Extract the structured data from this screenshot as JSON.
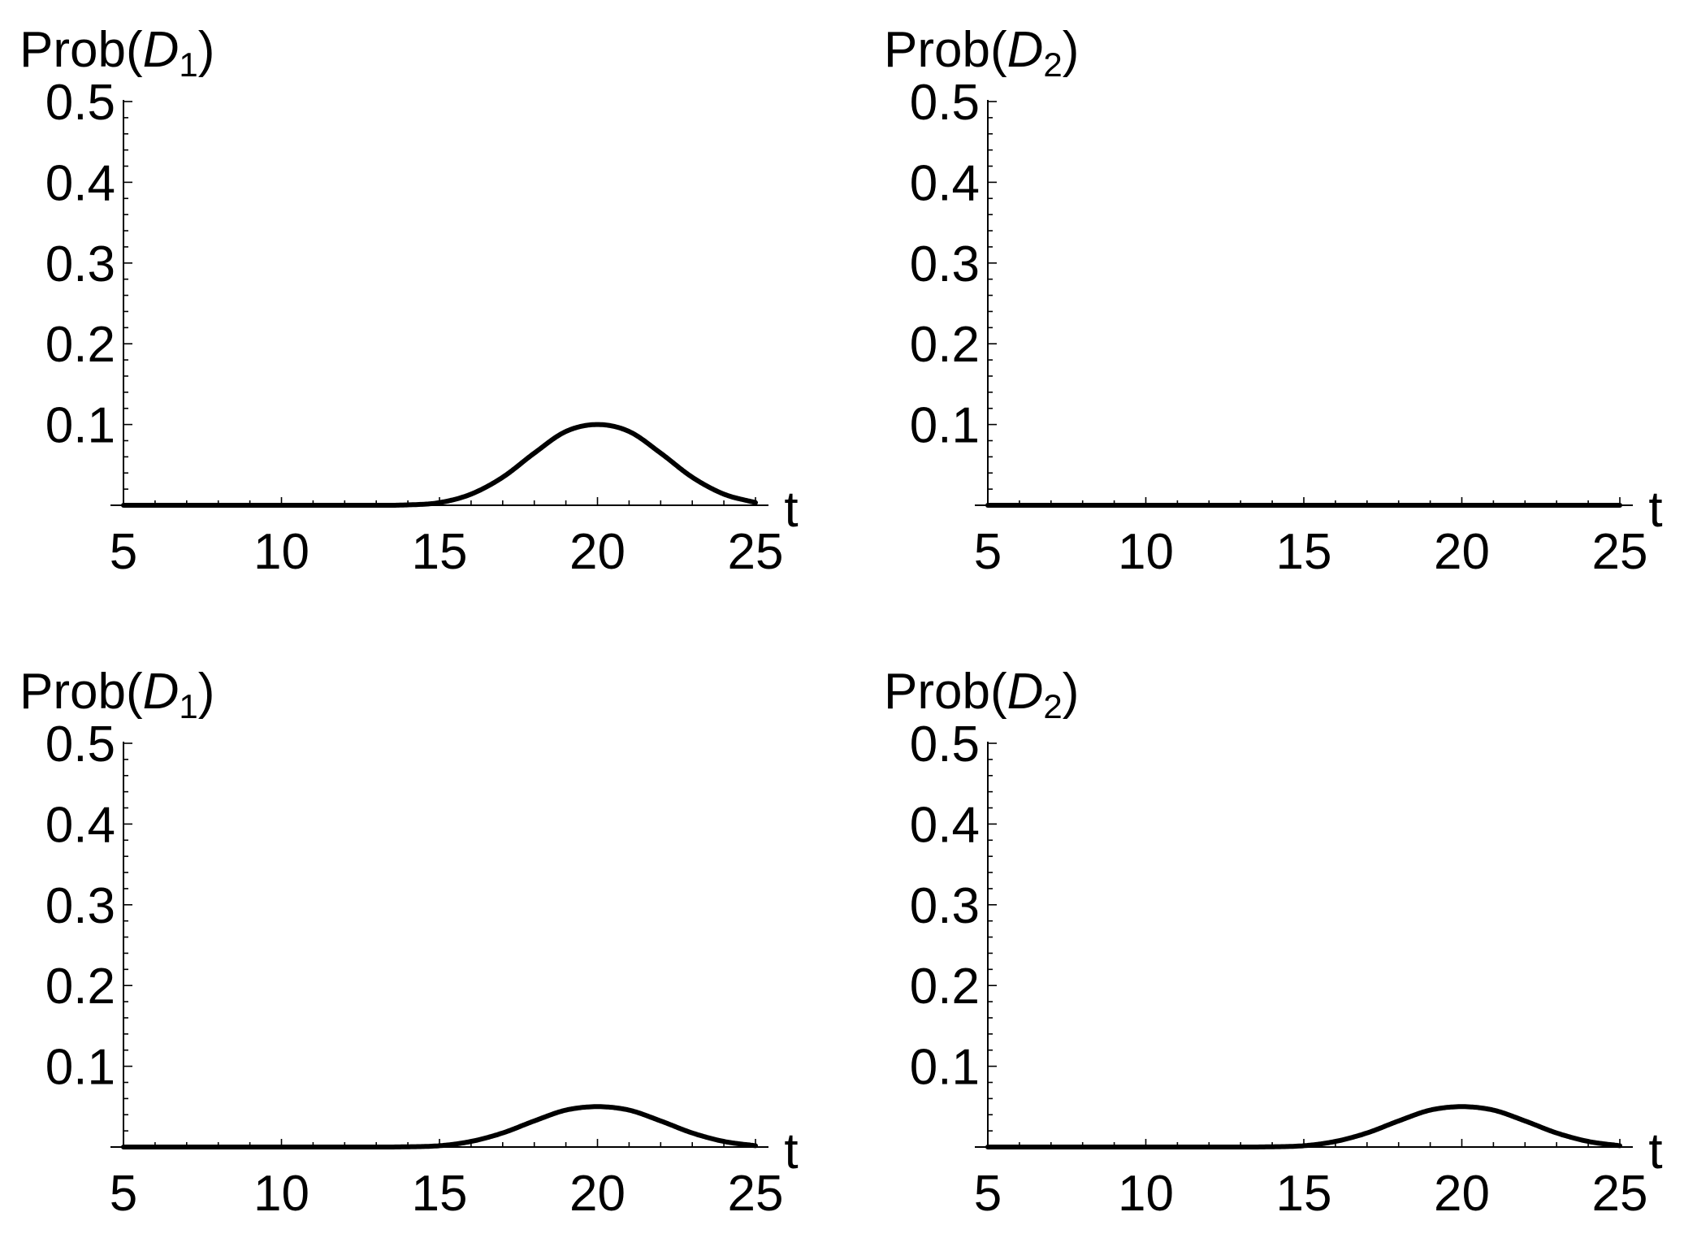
{
  "chart_data": [
    {
      "type": "line",
      "ylabel": {
        "prefix": "Prob(",
        "var": "D",
        "sub": "1",
        "suffix": ")"
      },
      "xlabel": "t",
      "xlim": [
        5,
        25
      ],
      "ylim": [
        0,
        0.5
      ],
      "xticks": [
        5,
        10,
        15,
        20,
        25
      ],
      "yticks": [
        0.1,
        0.2,
        0.3,
        0.4,
        0.5
      ],
      "ytick_labels": [
        "0.1",
        "0.2",
        "0.3",
        "0.4",
        "0.5"
      ],
      "series": [
        {
          "x": [
            5,
            10,
            14,
            15,
            16,
            17,
            18,
            19,
            20,
            21,
            22,
            23,
            24,
            25
          ],
          "y": [
            0,
            0,
            0.0005,
            0.0033,
            0.0138,
            0.0347,
            0.0646,
            0.0914,
            0.1,
            0.0914,
            0.0646,
            0.0347,
            0.0138,
            0.0033
          ]
        }
      ]
    },
    {
      "type": "line",
      "ylabel": {
        "prefix": "Prob(",
        "var": "D",
        "sub": "2",
        "suffix": ")"
      },
      "xlabel": "t",
      "xlim": [
        5,
        25
      ],
      "ylim": [
        0,
        0.5
      ],
      "xticks": [
        5,
        10,
        15,
        20,
        25
      ],
      "yticks": [
        0.1,
        0.2,
        0.3,
        0.4,
        0.5
      ],
      "ytick_labels": [
        "0.1",
        "0.2",
        "0.3",
        "0.4",
        "0.5"
      ],
      "series": [
        {
          "x": [
            5,
            10,
            15,
            20,
            25
          ],
          "y": [
            0,
            0,
            0,
            0,
            0
          ]
        }
      ]
    },
    {
      "type": "line",
      "ylabel": {
        "prefix": "Prob(",
        "var": "D",
        "sub": "1",
        "suffix": ")"
      },
      "xlabel": "t",
      "xlim": [
        5,
        25
      ],
      "ylim": [
        0,
        0.5
      ],
      "xticks": [
        5,
        10,
        15,
        20,
        25
      ],
      "yticks": [
        0.1,
        0.2,
        0.3,
        0.4,
        0.5
      ],
      "ytick_labels": [
        "0.1",
        "0.2",
        "0.3",
        "0.4",
        "0.5"
      ],
      "series": [
        {
          "x": [
            5,
            10,
            14,
            15,
            16,
            17,
            18,
            19,
            20,
            21,
            22,
            23,
            24,
            25
          ],
          "y": [
            0,
            0,
            0.0003,
            0.0016,
            0.0069,
            0.0174,
            0.0323,
            0.0457,
            0.05,
            0.0457,
            0.0323,
            0.0174,
            0.0069,
            0.0016
          ]
        }
      ]
    },
    {
      "type": "line",
      "ylabel": {
        "prefix": "Prob(",
        "var": "D",
        "sub": "2",
        "suffix": ")"
      },
      "xlabel": "t",
      "xlim": [
        5,
        25
      ],
      "ylim": [
        0,
        0.5
      ],
      "xticks": [
        5,
        10,
        15,
        20,
        25
      ],
      "yticks": [
        0.1,
        0.2,
        0.3,
        0.4,
        0.5
      ],
      "ytick_labels": [
        "0.1",
        "0.2",
        "0.3",
        "0.4",
        "0.5"
      ],
      "series": [
        {
          "x": [
            5,
            10,
            14,
            15,
            16,
            17,
            18,
            19,
            20,
            21,
            22,
            23,
            24,
            25
          ],
          "y": [
            0,
            0,
            0.0003,
            0.0016,
            0.0069,
            0.0174,
            0.0323,
            0.0457,
            0.05,
            0.0457,
            0.0323,
            0.0174,
            0.0069,
            0.0016
          ]
        }
      ]
    }
  ]
}
